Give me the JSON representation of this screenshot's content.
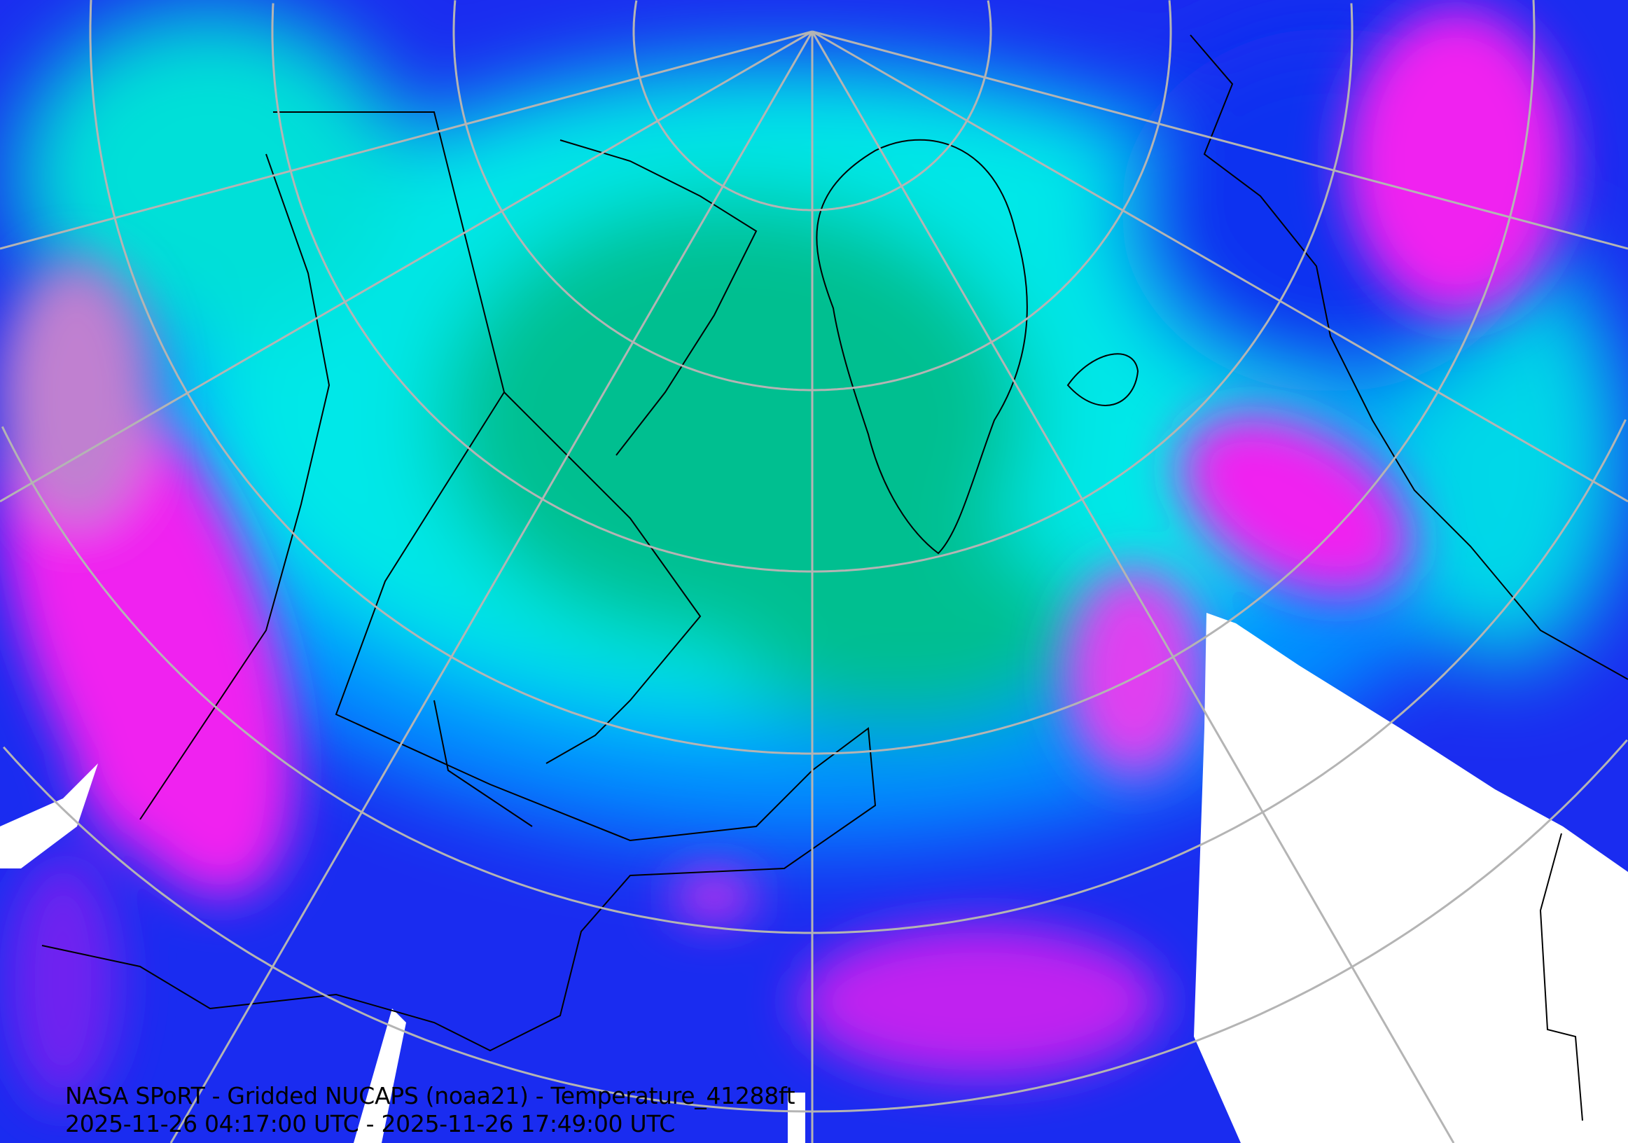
{
  "map": {
    "projection": "north polar stereographic",
    "variable": "Temperature_41288ft",
    "colors": {
      "coldest": "#00b38a",
      "cold": "#00f0e8",
      "mid": "#0090ff",
      "warm": "#1414f0",
      "warmest": "#f020f0",
      "extreme": "#b0a0b8",
      "no_data": "#ffffff",
      "graticule": "#b4b4b4",
      "coastlines": "#000000"
    }
  },
  "caption": {
    "title": "NASA SPoRT - Gridded NUCAPS (noaa21) - Temperature_41288ft",
    "time_range": "2025-11-26 04:17:00 UTC - 2025-11-26 17:49:00 UTC"
  }
}
